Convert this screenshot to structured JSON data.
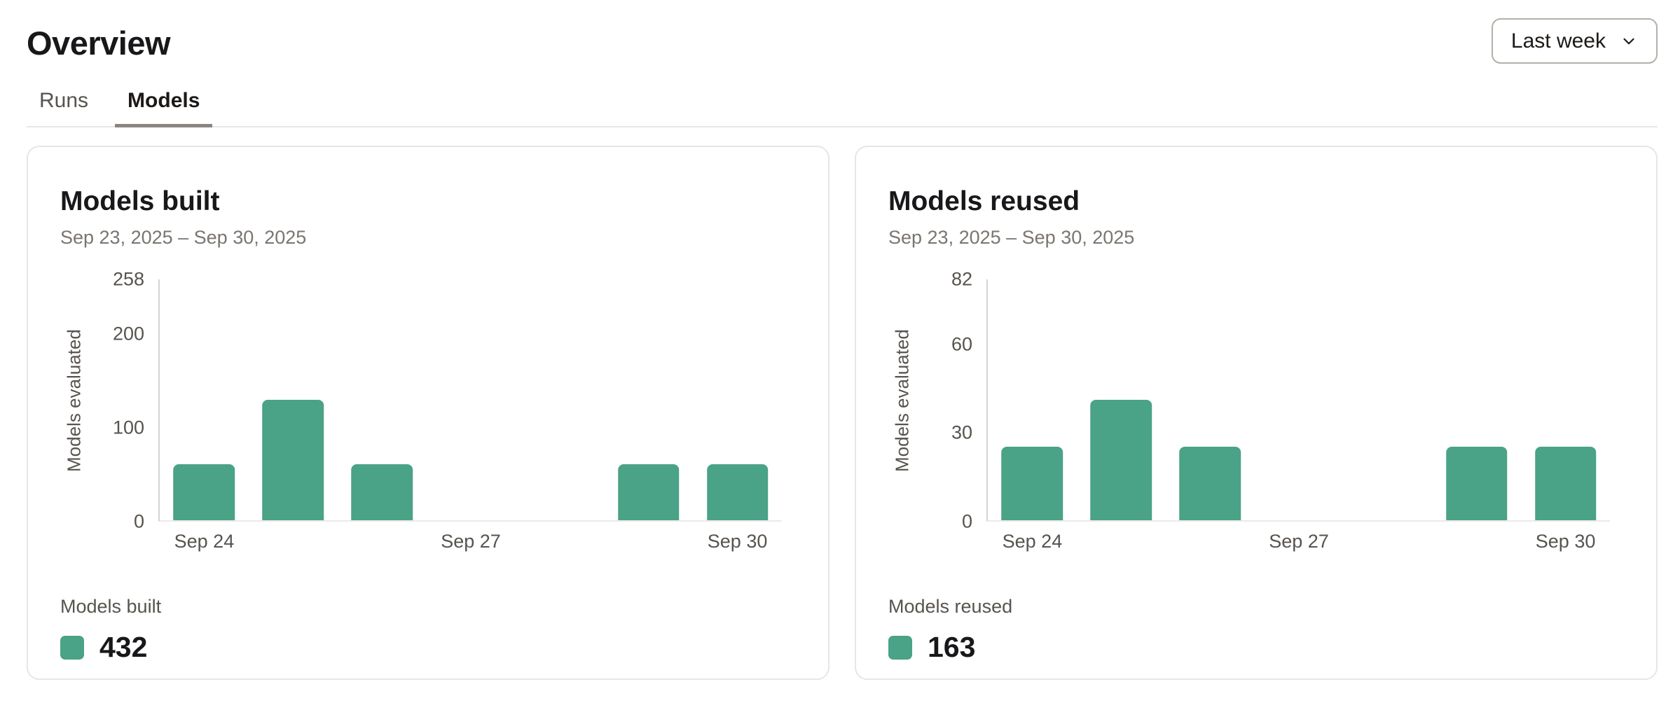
{
  "page": {
    "title": "Overview",
    "time_range": {
      "value": "Last week",
      "icon": "chevron-down"
    },
    "tabs": [
      {
        "label": "Runs",
        "active": false
      },
      {
        "label": "Models",
        "active": true
      }
    ]
  },
  "cards": [
    {
      "title": "Models built",
      "date_range": "Sep 23, 2025 – Sep 30, 2025",
      "legend": {
        "label": "Models built",
        "value": "432",
        "swatch_color": "#4aa287"
      }
    },
    {
      "title": "Models reused",
      "date_range": "Sep 23, 2025 – Sep 30, 2025",
      "legend": {
        "label": "Models reused",
        "value": "163",
        "swatch_color": "#4aa287"
      }
    }
  ],
  "chart_data": [
    {
      "type": "bar",
      "title": "Models built",
      "subtitle": "Sep 23, 2025 – Sep 30, 2025",
      "categories": [
        "Sep 24",
        "Sep 25",
        "Sep 26",
        "Sep 27",
        "Sep 28",
        "Sep 29",
        "Sep 30"
      ],
      "values": [
        60,
        129,
        60,
        0,
        0,
        60,
        60
      ],
      "x_tick_labels": [
        "Sep 24",
        "Sep 27",
        "Sep 30"
      ],
      "xlabel": "",
      "ylabel": "Models evaluated",
      "y_ticks": [
        0,
        100,
        200,
        258
      ],
      "ylim": [
        0,
        258
      ],
      "total": 432,
      "bar_color": "#4aa287",
      "grid": false,
      "legend_position": "bottom-left"
    },
    {
      "type": "bar",
      "title": "Models reused",
      "subtitle": "Sep 23, 2025 – Sep 30, 2025",
      "categories": [
        "Sep 24",
        "Sep 25",
        "Sep 26",
        "Sep 27",
        "Sep 28",
        "Sep 29",
        "Sep 30"
      ],
      "values": [
        25,
        41,
        25,
        0,
        0,
        25,
        25
      ],
      "x_tick_labels": [
        "Sep 24",
        "Sep 27",
        "Sep 30"
      ],
      "xlabel": "",
      "ylabel": "Models evaluated",
      "y_ticks": [
        0,
        30,
        60,
        82
      ],
      "ylim": [
        0,
        82
      ],
      "total": 163,
      "bar_color": "#4aa287",
      "grid": false,
      "legend_position": "bottom-left"
    }
  ]
}
